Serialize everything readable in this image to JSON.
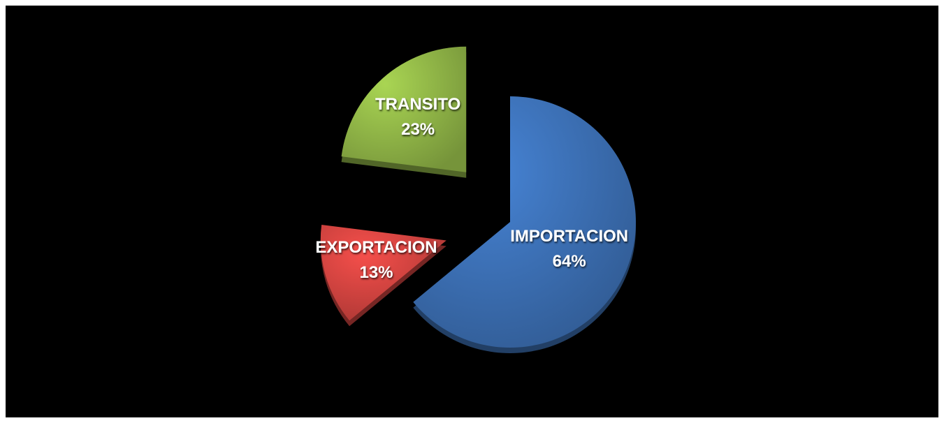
{
  "chart_data": {
    "type": "pie",
    "categories": [
      "IMPORTACION",
      "EXPORTACION",
      "TRANSITO"
    ],
    "values": [
      64,
      13,
      23
    ],
    "value_labels": [
      "64%",
      "13%",
      "23%"
    ],
    "colors": [
      "#3d72b8",
      "#d64541",
      "#93b948"
    ]
  }
}
